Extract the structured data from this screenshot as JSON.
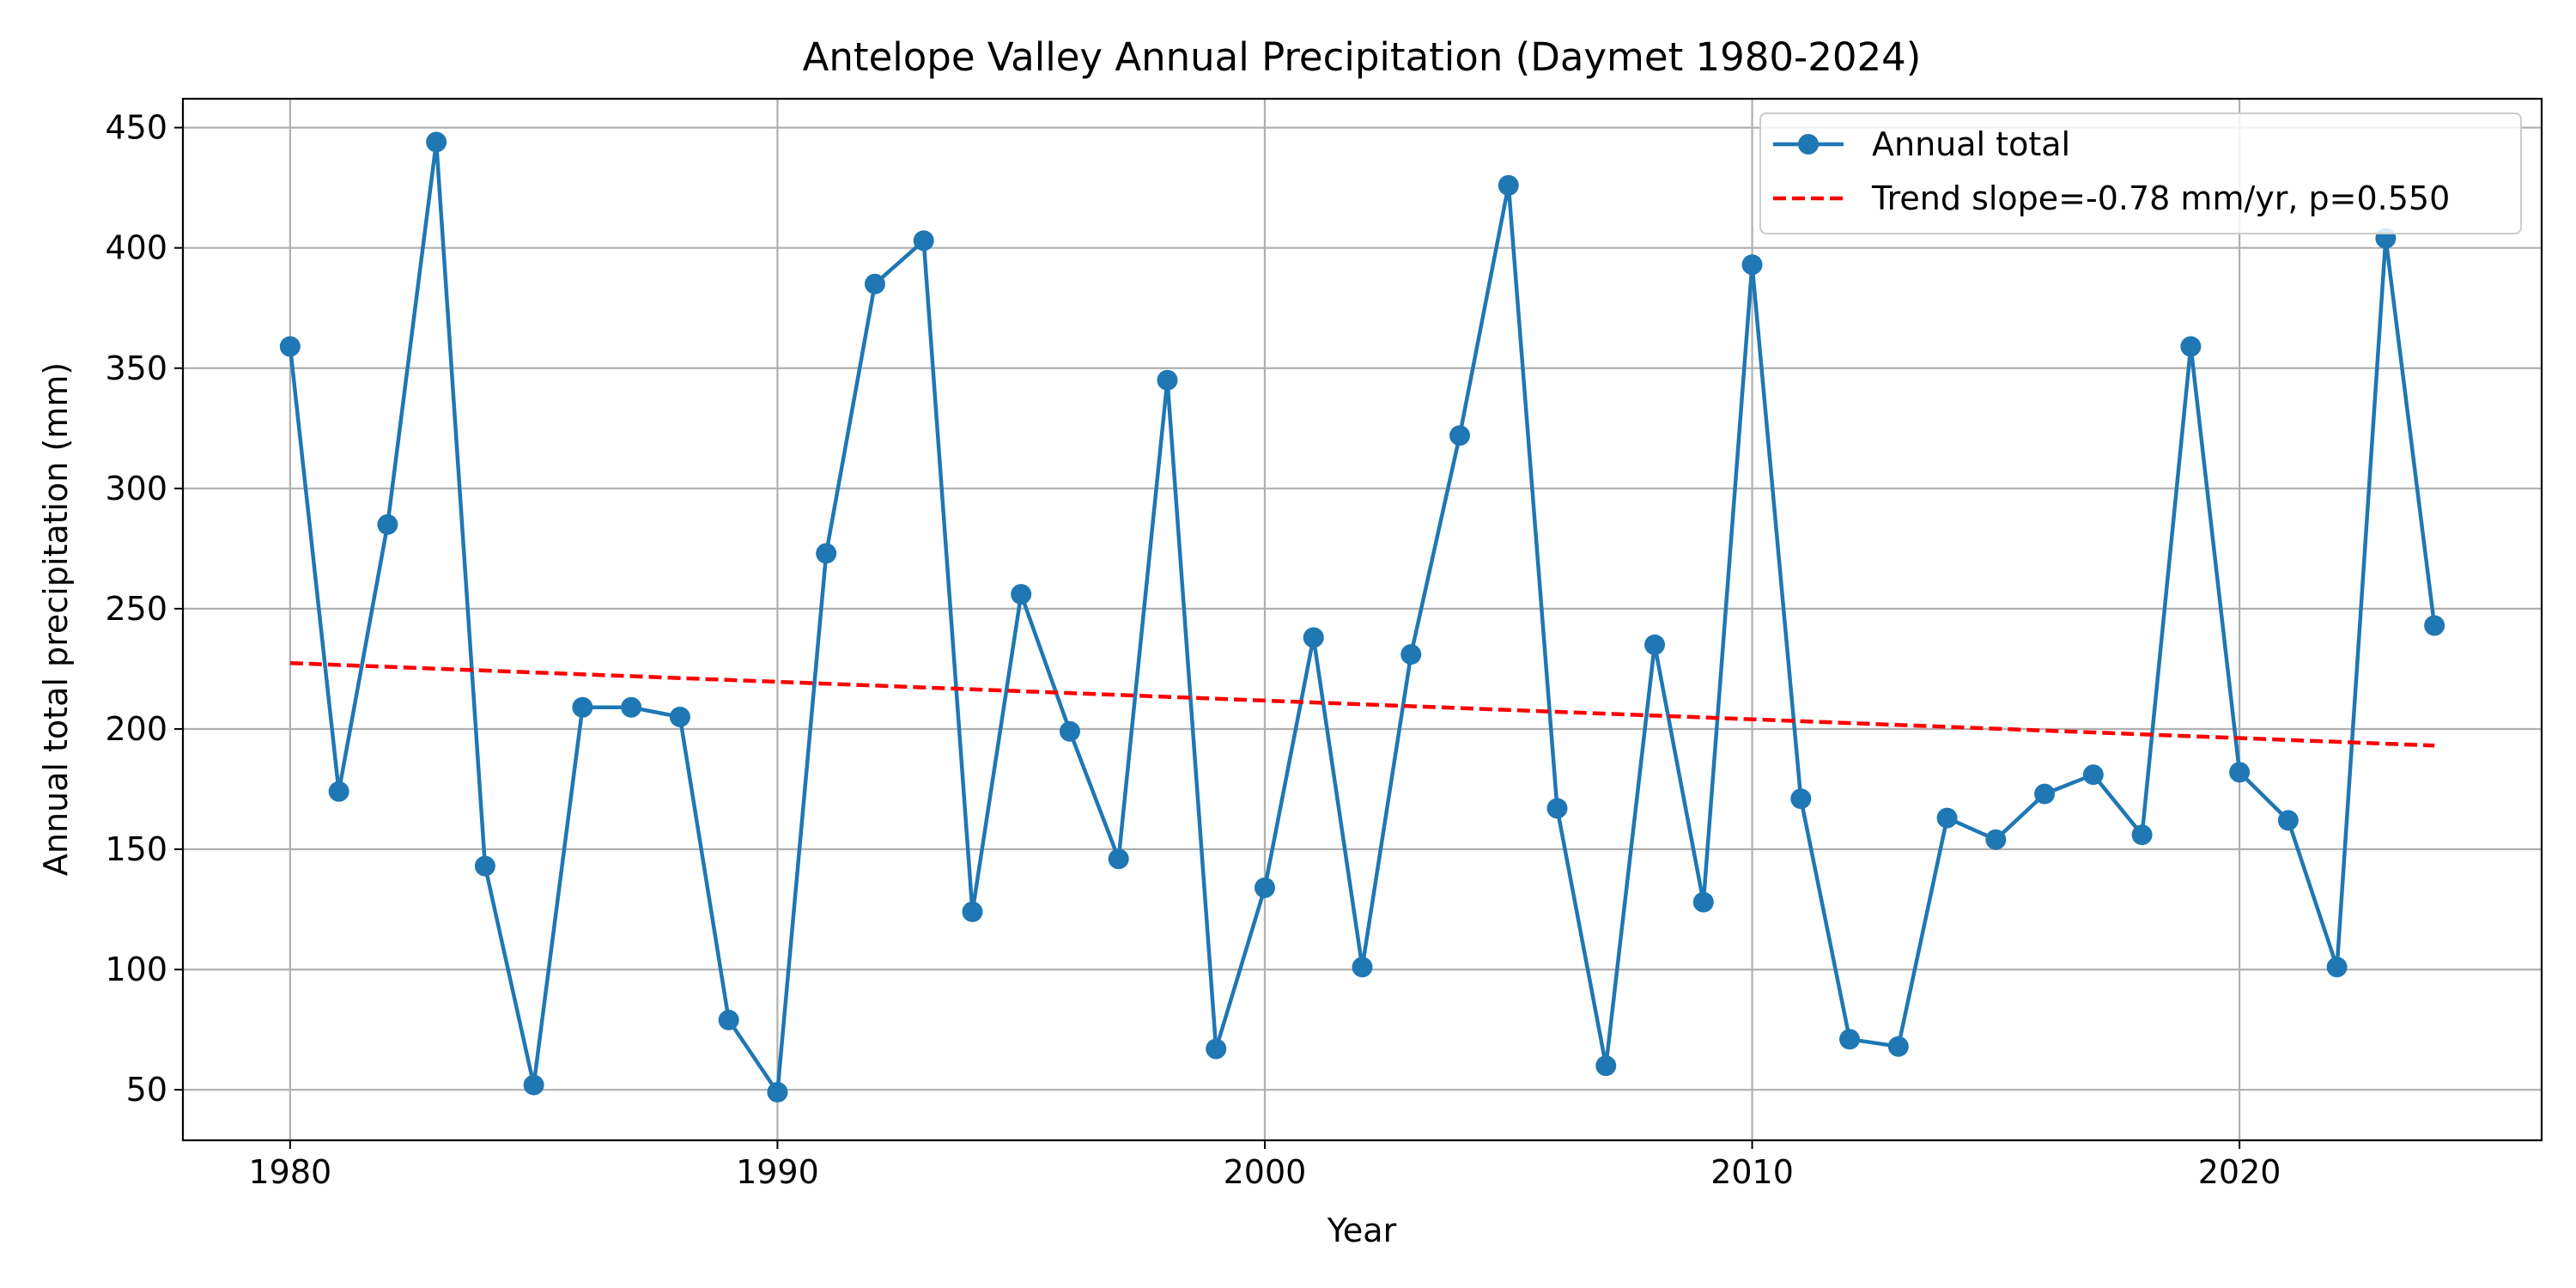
{
  "chart_data": {
    "type": "line",
    "title": "Antelope Valley Annual Precipitation (Daymet 1980-2024)",
    "xlabel": "Year",
    "ylabel": "Annual total precipitation (mm)",
    "xlim": [
      1977.8,
      2026.2
    ],
    "ylim": [
      29,
      462
    ],
    "xticks": [
      1980,
      1990,
      2000,
      2010,
      2020
    ],
    "yticks": [
      50,
      100,
      150,
      200,
      250,
      300,
      350,
      400,
      450
    ],
    "grid": true,
    "legend_position": "top-right",
    "x": [
      1980,
      1981,
      1982,
      1983,
      1984,
      1985,
      1986,
      1987,
      1988,
      1989,
      1990,
      1991,
      1992,
      1993,
      1994,
      1995,
      1996,
      1997,
      1998,
      1999,
      2000,
      2001,
      2002,
      2003,
      2004,
      2005,
      2006,
      2007,
      2008,
      2009,
      2010,
      2011,
      2012,
      2013,
      2014,
      2015,
      2016,
      2017,
      2018,
      2019,
      2020,
      2021,
      2022,
      2023,
      2024
    ],
    "series": [
      {
        "name": "Annual total",
        "color": "#1f77b4",
        "style": "solid",
        "marker": "circle",
        "values": [
          359,
          174,
          285,
          444,
          143,
          52,
          209,
          209,
          205,
          79,
          49,
          273,
          385,
          403,
          124,
          256,
          199,
          146,
          345,
          67,
          134,
          238,
          101,
          231,
          322,
          426,
          167,
          60,
          235,
          128,
          393,
          171,
          71,
          68,
          163,
          154,
          173,
          181,
          156,
          359,
          182,
          162,
          101,
          404,
          243
        ]
      },
      {
        "name": "Trend slope=-0.78 mm/yr, p=0.550",
        "color": "#ff0000",
        "style": "dashed",
        "marker": "none",
        "trend": {
          "x": [
            1980,
            2024
          ],
          "y": [
            227.4,
            193.1
          ]
        }
      }
    ]
  }
}
